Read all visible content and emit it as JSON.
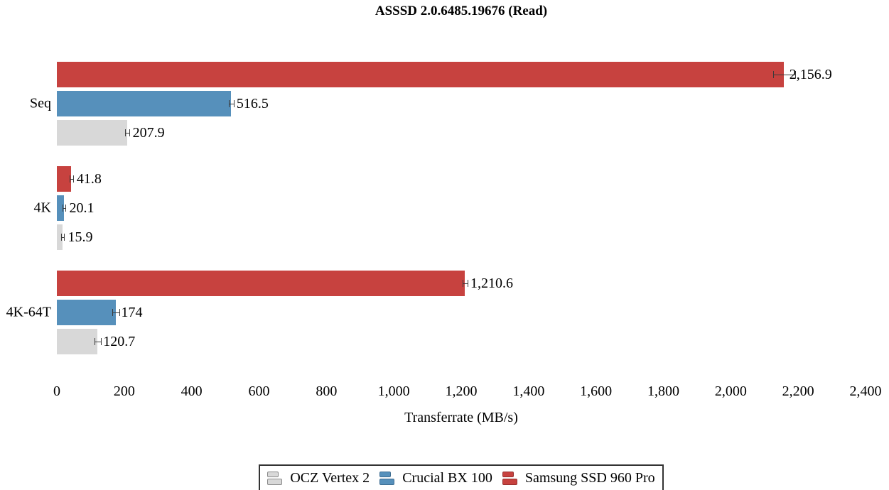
{
  "chart_data": {
    "type": "bar",
    "orientation": "horizontal",
    "title": "ASSSD 2.0.6485.19676 (Read)",
    "xlabel": "Transferrate (MB/s)",
    "categories": [
      "Seq",
      "4K",
      "4K-64T"
    ],
    "series": [
      {
        "name": "Samsung SSD 960 Pro",
        "color": "#c7423f",
        "values": [
          2156.9,
          41.8,
          1210.6
        ],
        "value_labels": [
          "2,156.9",
          "41.8",
          "1,210.6"
        ],
        "errors": [
          32,
          4,
          7
        ]
      },
      {
        "name": "Crucial BX 100",
        "color": "#5690bb",
        "values": [
          516.5,
          20.1,
          174
        ],
        "value_labels": [
          "516.5",
          "20.1",
          "174"
        ],
        "errors": [
          7,
          3,
          9
        ]
      },
      {
        "name": "OCZ Vertex 2",
        "color": "#d8d8d8",
        "values": [
          207.9,
          15.9,
          120.7
        ],
        "value_labels": [
          "207.9",
          "15.9",
          "120.7"
        ],
        "errors": [
          5,
          3,
          8
        ]
      }
    ],
    "xlim": [
      0,
      2400
    ],
    "xtick_step": 200,
    "xticks": [
      "0",
      "200",
      "400",
      "600",
      "800",
      "1,000",
      "1,200",
      "1,400",
      "1,600",
      "1,800",
      "2,000",
      "2,200",
      "2,400"
    ],
    "grid": "off",
    "error_bars": true,
    "legend": {
      "position": "bottom-center",
      "entries": [
        {
          "label": "OCZ Vertex 2",
          "color": "#d8d8d8",
          "border": "#8a8a8a"
        },
        {
          "label": "Crucial BX 100",
          "color": "#5690bb",
          "border": "#3d6d92"
        },
        {
          "label": "Samsung SSD 960 Pro",
          "color": "#c7423f",
          "border": "#96302e"
        }
      ]
    }
  }
}
